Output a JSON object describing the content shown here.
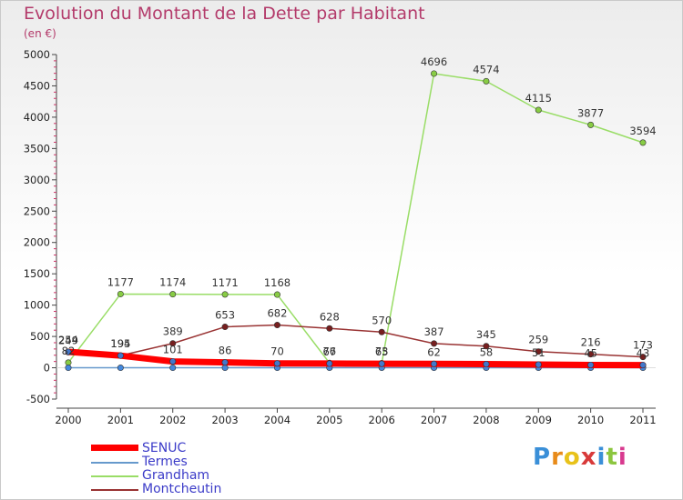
{
  "title": "Evolution du Montant de la Dette par Habitant",
  "unit": "(en €)",
  "logo": "Proxiti",
  "chart_data": {
    "type": "line",
    "title": "Evolution du Montant de la Dette par Habitant",
    "ylabel": "(en €)",
    "xlabel": "",
    "ylim": [
      -500,
      5000
    ],
    "yticks": [
      -500,
      0,
      500,
      1000,
      1500,
      2000,
      2500,
      3000,
      3500,
      4000,
      4500,
      5000
    ],
    "categories": [
      "2000",
      "2001",
      "2002",
      "2003",
      "2004",
      "2005",
      "2006",
      "2007",
      "2008",
      "2009",
      "2010",
      "2011"
    ],
    "series": [
      {
        "name": "SENUC",
        "color": "#ff0000",
        "values": [
          254,
          194,
          101,
          86,
          70,
          67,
          65,
          62,
          58,
          51,
          45,
          43
        ]
      },
      {
        "name": "Termes",
        "color": "#6699cc",
        "values": [
          0,
          0,
          0,
          0,
          0,
          0,
          0,
          0,
          0,
          0,
          0,
          0
        ]
      },
      {
        "name": "Grandham",
        "color": "#99dd66",
        "values": [
          82,
          1177,
          1174,
          1171,
          1168,
          76,
          73,
          4696,
          4574,
          4115,
          3877,
          3594
        ]
      },
      {
        "name": "Montcheutin",
        "color": "#993333",
        "values": [
          249,
          195,
          389,
          653,
          682,
          628,
          570,
          387,
          345,
          259,
          216,
          173
        ]
      }
    ],
    "legend": "bottom-left",
    "grid": false
  }
}
